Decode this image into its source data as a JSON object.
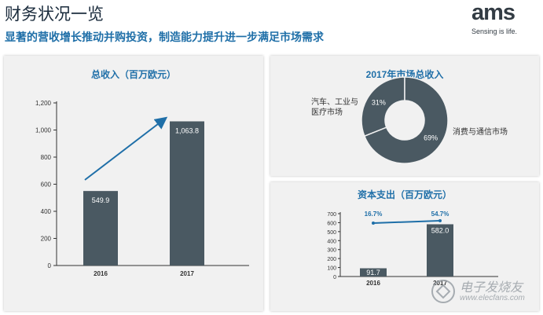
{
  "slide": {
    "title": "财务状况一览",
    "subtitle": "显著的营收增长推动并购投资，制造能力提升进一步满足市场需求"
  },
  "logo": {
    "wordmark": "ams",
    "tagline": "Sensing is life."
  },
  "watermark": {
    "cn": "电子发烧友",
    "url": "www.elecfans.com"
  },
  "colors": {
    "bar": "#4a5962",
    "accent": "#1f6fa8",
    "panel_bg": "#f1f1f1",
    "donut_inner": "#f1f1f1"
  },
  "chart_data": [
    {
      "id": "revenue",
      "type": "bar",
      "title": "总收入（百万欧元）",
      "categories": [
        "2016",
        "2017"
      ],
      "values": [
        549.9,
        1063.8
      ],
      "value_labels": [
        "549.9",
        "1,063.8"
      ],
      "yticks": [
        0,
        200,
        400,
        600,
        800,
        1000,
        1200
      ],
      "ytick_labels": [
        "0",
        "200",
        "400",
        "600",
        "800",
        "1,000",
        "1,200"
      ],
      "ylim": [
        0,
        1200
      ],
      "annotation": "growth-arrow"
    },
    {
      "id": "market",
      "type": "pie",
      "title": "2017年市场总收入",
      "slices": [
        {
          "label": "汽车、工业与医疗市场",
          "value": 31,
          "pct_label": "31%"
        },
        {
          "label": "消费与通信市场",
          "value": 69,
          "pct_label": "69%"
        }
      ]
    },
    {
      "id": "capex",
      "type": "bar",
      "title": "资本支出（百万欧元）",
      "categories": [
        "2016",
        "2017"
      ],
      "values": [
        91.7,
        582.0
      ],
      "value_labels": [
        "91.7",
        "582.0"
      ],
      "ratio_labels": [
        "16.7%",
        "54.7%"
      ],
      "yticks": [
        0,
        100,
        200,
        300,
        400,
        500,
        600,
        700
      ],
      "ytick_labels": [
        "0",
        "100",
        "200",
        "300",
        "400",
        "500",
        "600",
        "700"
      ],
      "ylim": [
        0,
        700
      ]
    }
  ]
}
